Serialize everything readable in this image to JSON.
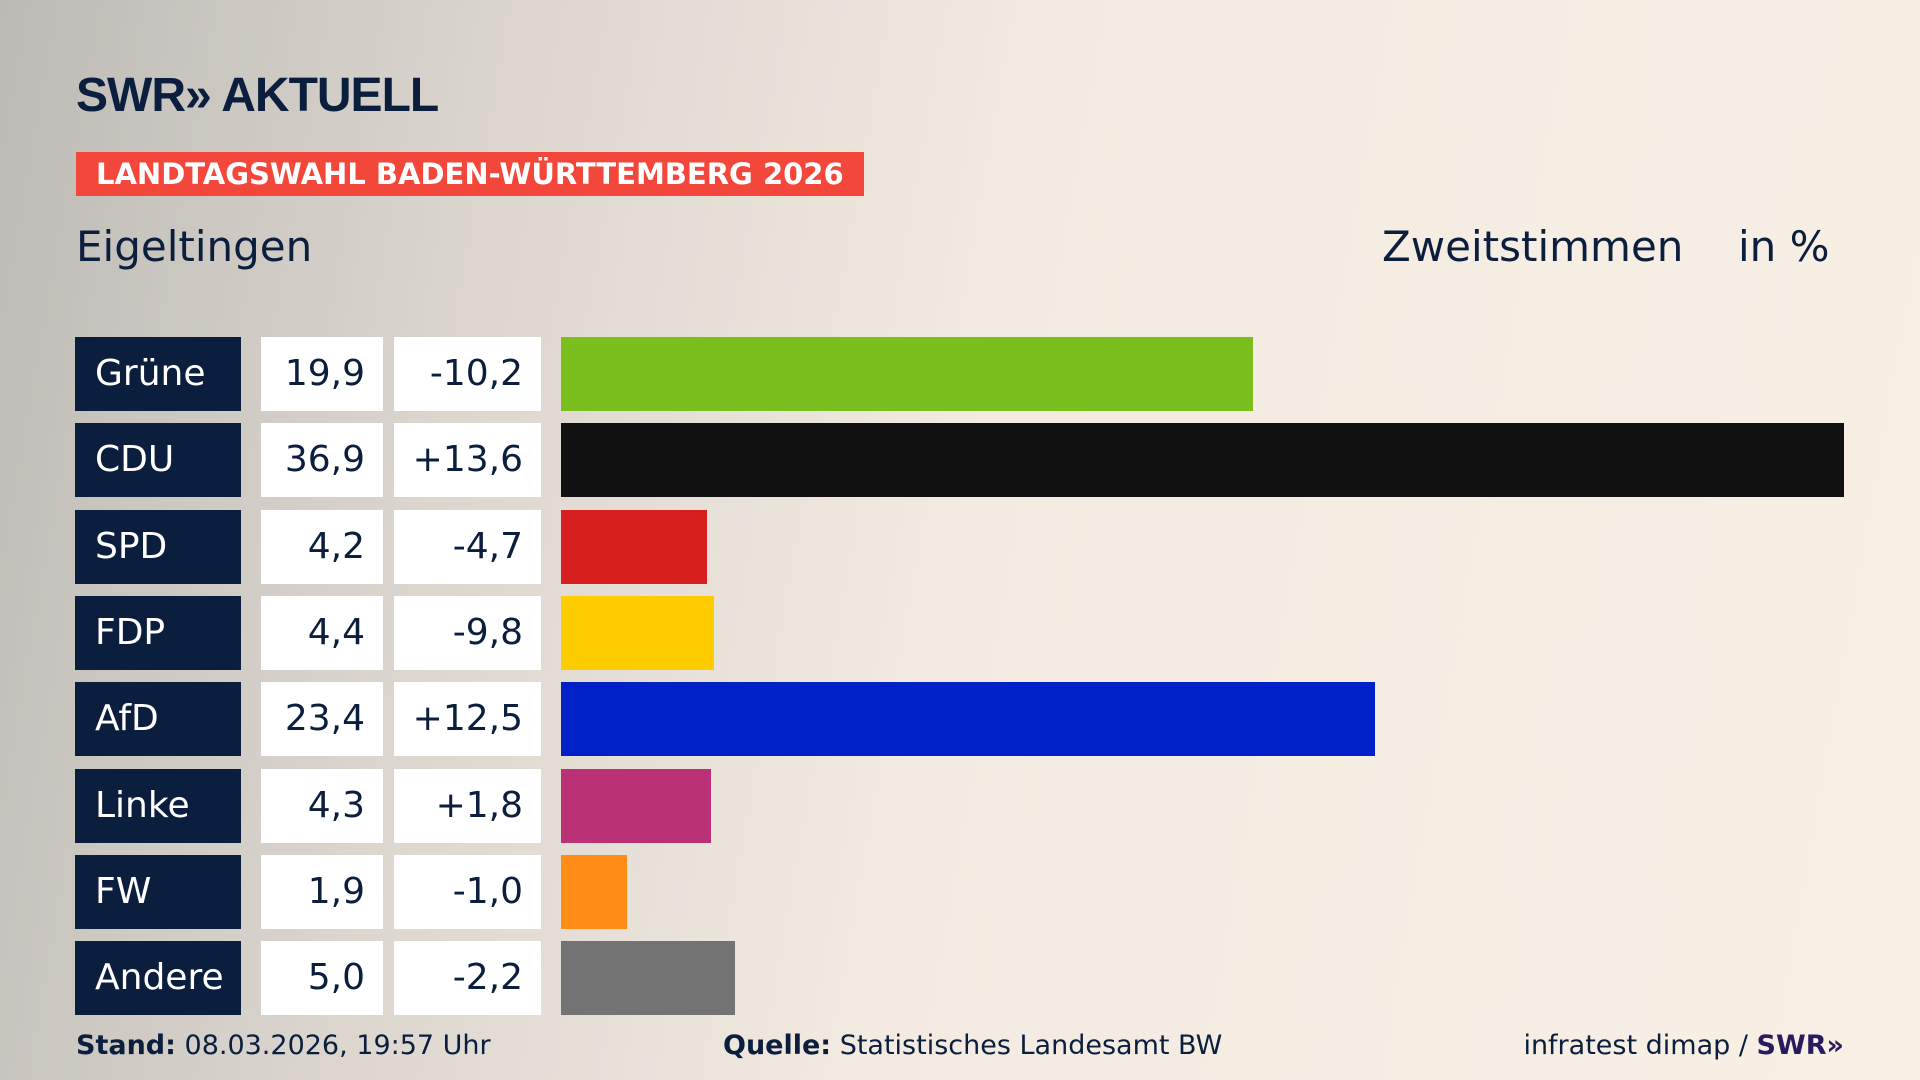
{
  "header": {
    "logo": "SWR» AKTUELL",
    "banner": "LANDTAGSWAHL BADEN-WÜRTTEMBERG 2026",
    "place": "Eigeltingen",
    "vote_type": "Zweitstimmen",
    "unit": "in %"
  },
  "chart_data": {
    "type": "bar",
    "orientation": "horizontal",
    "xlim": [
      0,
      36.9
    ],
    "categories": [
      "Grüne",
      "CDU",
      "SPD",
      "FDP",
      "AfD",
      "Linke",
      "FW",
      "Andere"
    ],
    "values": [
      19.9,
      36.9,
      4.2,
      4.4,
      23.4,
      4.3,
      1.9,
      5.0
    ],
    "value_labels": [
      "19,9",
      "36,9",
      "4,2",
      "4,4",
      "23,4",
      "4,3",
      "1,9",
      "5,0"
    ],
    "diff_labels": [
      "-10,2",
      "+13,6",
      "-4,7",
      "-9,8",
      "+12,5",
      "+1,8",
      "-1,0",
      "-2,2"
    ],
    "colors": [
      "#7abf1e",
      "#111111",
      "#d71f1f",
      "#ffcc00",
      "#0020c8",
      "#bb3175",
      "#ff8c16",
      "#737373"
    ]
  },
  "footer": {
    "stand_label": "Stand:",
    "stand_value": "08.03.2026, 19:57 Uhr",
    "source_label": "Quelle:",
    "source_value": "Statistisches Landesamt BW",
    "credit": "infratest dimap / ",
    "credit_logo": "SWR»"
  }
}
